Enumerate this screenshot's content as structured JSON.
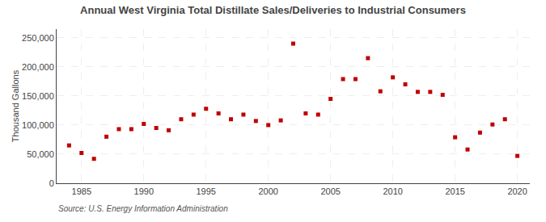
{
  "chart_data": {
    "type": "scatter",
    "title": "Annual West Virginia Total Distillate Sales/Deliveries to Industrial Consumers",
    "ylabel": "Thousand Gallons",
    "annotations": [
      "Source: U.S. Energy Information Administration"
    ],
    "x": [
      1984,
      1985,
      1986,
      1987,
      1988,
      1989,
      1990,
      1991,
      1992,
      1993,
      1994,
      1995,
      1996,
      1997,
      1998,
      1999,
      2000,
      2001,
      2002,
      2003,
      2004,
      2005,
      2006,
      2007,
      2008,
      2009,
      2010,
      2011,
      2012,
      2013,
      2014,
      2015,
      2016,
      2017,
      2018,
      2019,
      2020
    ],
    "values": [
      65000,
      52000,
      42000,
      80000,
      93000,
      93000,
      102000,
      95000,
      91000,
      110000,
      118000,
      128000,
      120000,
      110000,
      118000,
      107000,
      100000,
      108000,
      240000,
      120000,
      118000,
      145000,
      179000,
      179000,
      215000,
      158000,
      182000,
      170000,
      157000,
      157000,
      152000,
      79000,
      58000,
      87000,
      101000,
      110000,
      47000
    ],
    "color": "#c00000",
    "marker": "square",
    "xlim": [
      1983,
      2021
    ],
    "xticks": [
      1985,
      1990,
      1995,
      2000,
      2005,
      2010,
      2015,
      2020
    ],
    "ylim": [
      0,
      265000
    ],
    "yticks": [
      0,
      {
        "value": 50000,
        "label": "50,000"
      },
      {
        "value": 100000,
        "label": "100,000"
      },
      {
        "value": 150000,
        "label": "150,000"
      },
      {
        "value": 200000,
        "label": "200,000"
      },
      {
        "value": 250000,
        "label": "250,000"
      }
    ],
    "grid": true
  }
}
